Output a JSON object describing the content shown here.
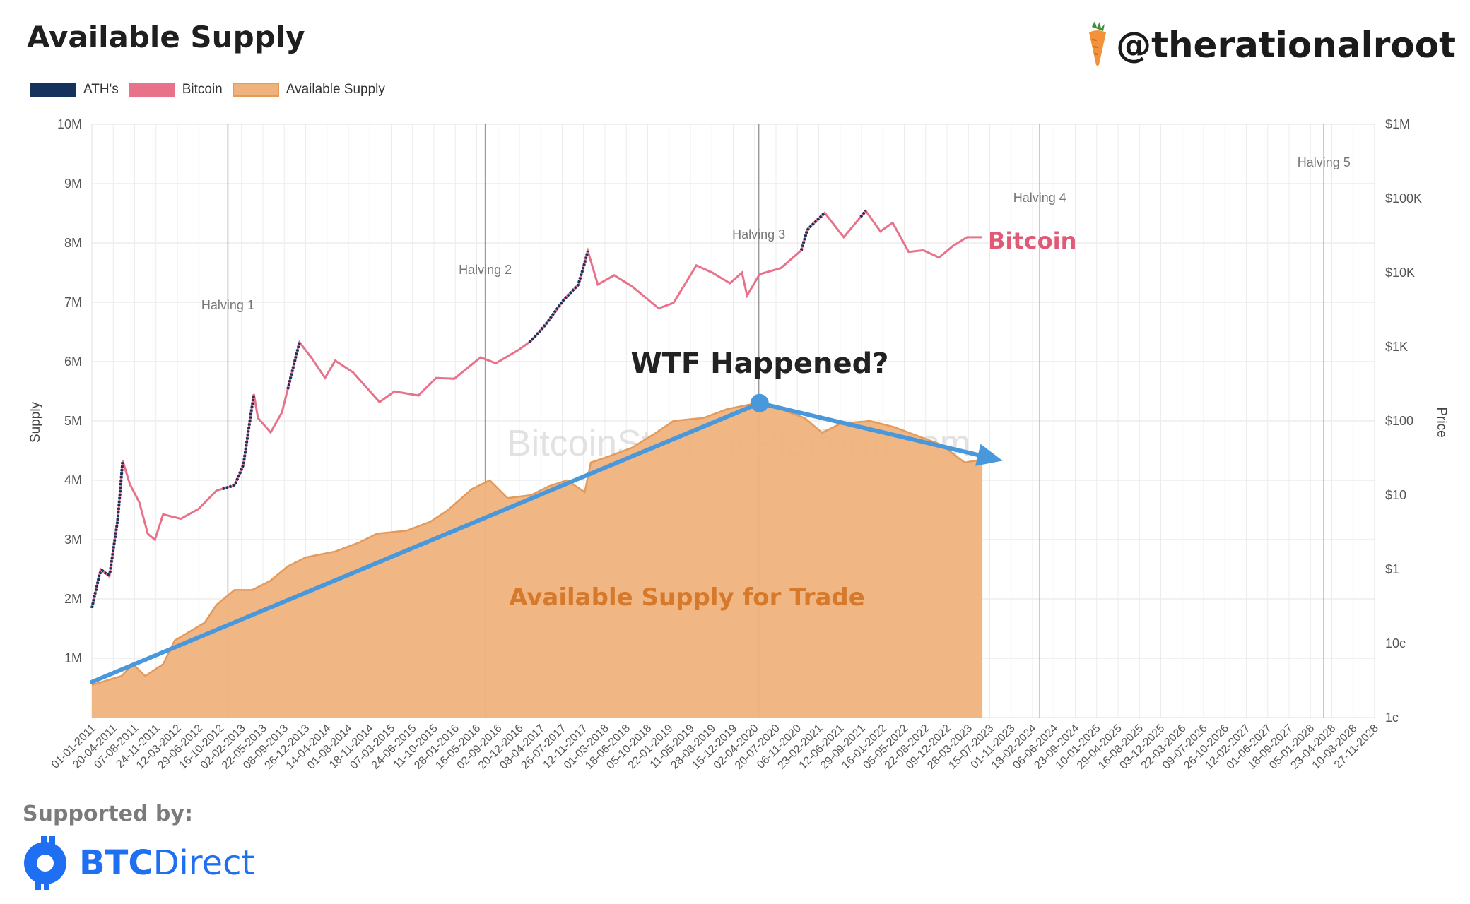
{
  "header": {
    "title": "Available Supply",
    "handle": "@therationalroot"
  },
  "legend": [
    {
      "label": "ATH's",
      "color": "#14325c"
    },
    {
      "label": "Bitcoin",
      "color": "#e9728b"
    },
    {
      "label": "Available Supply",
      "color": "#efb27d"
    }
  ],
  "annotations": {
    "question": "WTF Happened?",
    "area_label": "Available Supply for Trade",
    "series_label": "Bitcoin",
    "watermark": "BitcoinStrategyPlatform.com"
  },
  "footer": {
    "supported_by": "Supported by:",
    "sponsor_bold": "BTC",
    "sponsor_rest": "Direct"
  },
  "chart_data": {
    "type": "area",
    "left_axis": {
      "label": "Supply",
      "ticks": [
        "1M",
        "2M",
        "3M",
        "4M",
        "5M",
        "6M",
        "7M",
        "8M",
        "9M",
        "10M"
      ],
      "range": [
        0,
        10000000
      ]
    },
    "right_axis": {
      "label": "Price",
      "scale": "log",
      "ticks": [
        "1c",
        "10c",
        "$1",
        "$10",
        "$100",
        "$1K",
        "$10K",
        "$100K",
        "$1M"
      ],
      "range": [
        0.01,
        1000000
      ]
    },
    "x_ticks": [
      "01-01-2011",
      "20-04-2011",
      "07-08-2011",
      "24-11-2011",
      "12-03-2012",
      "29-06-2012",
      "16-10-2012",
      "02-02-2013",
      "22-05-2013",
      "08-09-2013",
      "26-12-2013",
      "14-04-2014",
      "01-08-2014",
      "18-11-2014",
      "07-03-2015",
      "24-06-2015",
      "11-10-2015",
      "28-01-2016",
      "16-05-2016",
      "02-09-2016",
      "20-12-2016",
      "08-04-2017",
      "26-07-2017",
      "12-11-2017",
      "01-03-2018",
      "18-06-2018",
      "05-10-2018",
      "22-01-2019",
      "11-05-2019",
      "28-08-2019",
      "15-12-2019",
      "02-04-2020",
      "20-07-2020",
      "06-11-2020",
      "23-02-2021",
      "12-06-2021",
      "29-09-2021",
      "16-01-2022",
      "05-05-2022",
      "22-08-2022",
      "09-12-2022",
      "28-03-2023",
      "15-07-2023",
      "01-11-2023",
      "18-02-2024",
      "06-06-2024",
      "23-09-2024",
      "10-01-2025",
      "29-04-2025",
      "16-08-2025",
      "03-12-2025",
      "22-03-2026",
      "09-07-2026",
      "26-10-2026",
      "12-02-2027",
      "01-06-2027",
      "18-09-2027",
      "05-01-2028",
      "23-04-2028",
      "10-08-2028",
      "27-11-2028"
    ],
    "halvings": [
      {
        "label": "Halving 1",
        "date": "2012-11-28"
      },
      {
        "label": "Halving 2",
        "date": "2016-07-09"
      },
      {
        "label": "Halving 3",
        "date": "2020-05-11"
      },
      {
        "label": "Halving 4",
        "date": "2024-04-20"
      },
      {
        "label": "Halving 5",
        "date": "2028-04-15"
      }
    ],
    "series": [
      {
        "name": "Available Supply",
        "points": [
          [
            "2011-01-01",
            550000
          ],
          [
            "2011-06-01",
            700000
          ],
          [
            "2011-08-01",
            900000
          ],
          [
            "2011-10-01",
            700000
          ],
          [
            "2012-01-01",
            900000
          ],
          [
            "2012-03-01",
            1300000
          ],
          [
            "2012-08-01",
            1600000
          ],
          [
            "2012-10-01",
            1900000
          ],
          [
            "2013-01-01",
            2150000
          ],
          [
            "2013-04-01",
            2150000
          ],
          [
            "2013-07-01",
            2300000
          ],
          [
            "2013-10-01",
            2550000
          ],
          [
            "2014-01-01",
            2700000
          ],
          [
            "2014-06-01",
            2800000
          ],
          [
            "2014-10-01",
            2950000
          ],
          [
            "2015-01-01",
            3100000
          ],
          [
            "2015-06-01",
            3150000
          ],
          [
            "2015-10-01",
            3300000
          ],
          [
            "2016-01-01",
            3500000
          ],
          [
            "2016-05-01",
            3850000
          ],
          [
            "2016-08-01",
            4000000
          ],
          [
            "2016-11-01",
            3700000
          ],
          [
            "2017-03-01",
            3750000
          ],
          [
            "2017-06-01",
            3900000
          ],
          [
            "2017-09-01",
            4000000
          ],
          [
            "2017-12-01",
            3800000
          ],
          [
            "2018-01-01",
            4300000
          ],
          [
            "2018-04-01",
            4400000
          ],
          [
            "2018-08-01",
            4550000
          ],
          [
            "2018-12-01",
            4800000
          ],
          [
            "2019-03-01",
            5000000
          ],
          [
            "2019-08-01",
            5050000
          ],
          [
            "2019-12-01",
            5200000
          ],
          [
            "2020-05-01",
            5300000
          ],
          [
            "2020-09-01",
            5200000
          ],
          [
            "2021-01-01",
            5050000
          ],
          [
            "2021-04-01",
            4800000
          ],
          [
            "2021-07-01",
            4950000
          ],
          [
            "2021-12-01",
            5000000
          ],
          [
            "2022-04-01",
            4900000
          ],
          [
            "2022-08-01",
            4750000
          ],
          [
            "2022-12-01",
            4600000
          ],
          [
            "2023-04-01",
            4300000
          ],
          [
            "2023-07-01",
            4350000
          ]
        ]
      },
      {
        "name": "Bitcoin",
        "points": [
          [
            "2011-01-01",
            0.3
          ],
          [
            "2011-02-15",
            1.0
          ],
          [
            "2011-04-01",
            0.8
          ],
          [
            "2011-05-15",
            5.0
          ],
          [
            "2011-06-08",
            29.0
          ],
          [
            "2011-07-15",
            14.0
          ],
          [
            "2011-09-01",
            8.0
          ],
          [
            "2011-10-15",
            3.0
          ],
          [
            "2011-11-20",
            2.5
          ],
          [
            "2012-01-01",
            5.5
          ],
          [
            "2012-04-01",
            4.8
          ],
          [
            "2012-07-01",
            6.5
          ],
          [
            "2012-10-01",
            11.5
          ],
          [
            "2013-01-01",
            13.5
          ],
          [
            "2013-02-15",
            25.0
          ],
          [
            "2013-04-10",
            230.0
          ],
          [
            "2013-05-01",
            110.0
          ],
          [
            "2013-07-05",
            70.0
          ],
          [
            "2013-09-01",
            130.0
          ],
          [
            "2013-11-30",
            1150.0
          ],
          [
            "2014-02-01",
            700.0
          ],
          [
            "2014-04-10",
            380.0
          ],
          [
            "2014-06-01",
            650.0
          ],
          [
            "2014-09-01",
            450.0
          ],
          [
            "2015-01-14",
            180.0
          ],
          [
            "2015-04-01",
            250.0
          ],
          [
            "2015-08-01",
            220.0
          ],
          [
            "2015-11-01",
            380.0
          ],
          [
            "2016-02-01",
            370.0
          ],
          [
            "2016-06-15",
            720.0
          ],
          [
            "2016-09-01",
            600.0
          ],
          [
            "2016-12-25",
            900.0
          ],
          [
            "2017-03-01",
            1200.0
          ],
          [
            "2017-05-15",
            2000.0
          ],
          [
            "2017-08-15",
            4300.0
          ],
          [
            "2017-11-01",
            7000.0
          ],
          [
            "2017-12-17",
            19500.0
          ],
          [
            "2018-02-06",
            6900.0
          ],
          [
            "2018-05-01",
            9200.0
          ],
          [
            "2018-08-01",
            6500.0
          ],
          [
            "2018-12-15",
            3300.0
          ],
          [
            "2019-03-01",
            3900.0
          ],
          [
            "2019-06-26",
            12500.0
          ],
          [
            "2019-09-15",
            10000.0
          ],
          [
            "2019-12-15",
            7200.0
          ],
          [
            "2020-02-15",
            10000.0
          ],
          [
            "2020-03-12",
            4900.0
          ],
          [
            "2020-05-15",
            9500.0
          ],
          [
            "2020-09-01",
            11500.0
          ],
          [
            "2020-12-15",
            20000.0
          ],
          [
            "2021-01-15",
            38000.0
          ],
          [
            "2021-04-14",
            64000.0
          ],
          [
            "2021-07-20",
            30000.0
          ],
          [
            "2021-11-10",
            68000.0
          ],
          [
            "2022-01-24",
            36000.0
          ],
          [
            "2022-03-28",
            47000.0
          ],
          [
            "2022-06-18",
            19000.0
          ],
          [
            "2022-09-01",
            20000.0
          ],
          [
            "2022-11-21",
            16000.0
          ],
          [
            "2023-02-01",
            23000.0
          ],
          [
            "2023-04-14",
            30000.0
          ],
          [
            "2023-07-01",
            30000.0
          ]
        ]
      }
    ],
    "ath_ranges": [
      [
        "2011-01-01",
        "2011-06-08"
      ],
      [
        "2012-11-01",
        "2013-04-10"
      ],
      [
        "2013-10-01",
        "2013-11-30"
      ],
      [
        "2017-02-20",
        "2017-12-17"
      ],
      [
        "2020-12-15",
        "2021-04-14"
      ],
      [
        "2021-10-15",
        "2021-11-10"
      ]
    ],
    "trend_arrows": [
      {
        "from": [
          "2011-01-01",
          600000
        ],
        "to": [
          "2020-05-15",
          5300000
        ]
      },
      {
        "from": [
          "2020-05-15",
          5300000
        ],
        "to": [
          "2023-09-15",
          4350000
        ]
      }
    ],
    "x_range": [
      "2011-01-01",
      "2028-12-31"
    ]
  }
}
